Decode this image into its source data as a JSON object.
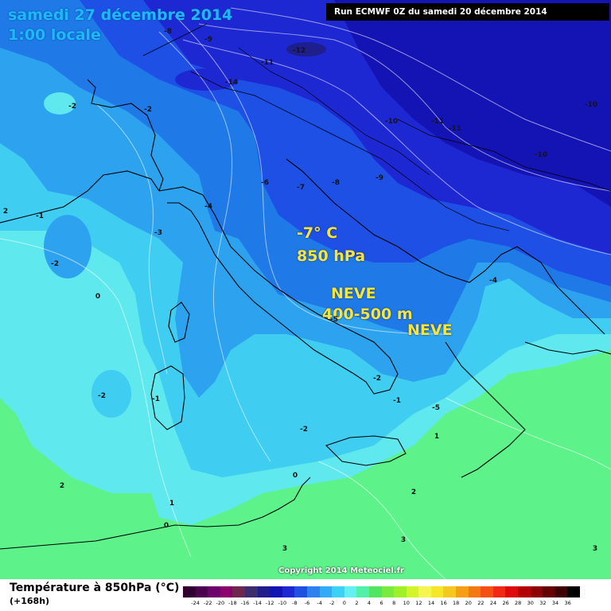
{
  "header": {
    "date_title": "samedi 27 décembre 2014",
    "time_title": "1:00 locale",
    "run_info": "Run ECMWF 0Z du samedi 20 décembre 2014"
  },
  "annotations": {
    "temp": "-7° C",
    "level": "850 hPa",
    "neve_main": "NEVE",
    "altitude": "400-500 m",
    "neve_second": "NEVE"
  },
  "isotherm_labels": [
    "-8",
    "-9",
    "-12",
    "-11",
    "-14",
    "-2",
    "-2",
    "-10",
    "-11",
    "-11",
    "-10",
    "-10",
    "-9",
    "-6",
    "-7",
    "-8",
    "2",
    "-1",
    "-4",
    "-3",
    "-2",
    "0",
    "-4",
    "-5",
    "-2",
    "-1",
    "-5",
    "-2",
    "-1",
    "0",
    "-2",
    "1",
    "0",
    "2",
    "1",
    "0",
    "2",
    "3",
    "3",
    "3"
  ],
  "copyright": "Copyright 2014 Meteociel.fr",
  "legend": {
    "title": "Température à 850hPa (°C)",
    "subtitle": "(+168h)",
    "colors": [
      "#300030",
      "#4b0050",
      "#6e006e",
      "#8c006e",
      "#6e2850",
      "#3c2d6e",
      "#1e1e8c",
      "#1414b4",
      "#1e28d2",
      "#1e50e6",
      "#2d82f0",
      "#32aaf5",
      "#3cd2f5",
      "#64f0f0",
      "#50f0aa",
      "#50e664",
      "#78eb3c",
      "#a0f028",
      "#d2f528",
      "#f5f550",
      "#f5e628",
      "#f5c81e",
      "#f5a014",
      "#f57814",
      "#f55014",
      "#f02814",
      "#dc0a0a",
      "#b40000",
      "#8c0000",
      "#640000",
      "#3c0000",
      "#000000"
    ],
    "ticks": [
      "-24",
      "-22",
      "-20",
      "-18",
      "-16",
      "-14",
      "-12",
      "-10",
      "-8",
      "-6",
      "-4",
      "-2",
      "0",
      "2",
      "4",
      "6",
      "8",
      "10",
      "12",
      "14",
      "16",
      "18",
      "20",
      "22",
      "24",
      "26",
      "28",
      "30",
      "32",
      "34",
      "36"
    ]
  }
}
